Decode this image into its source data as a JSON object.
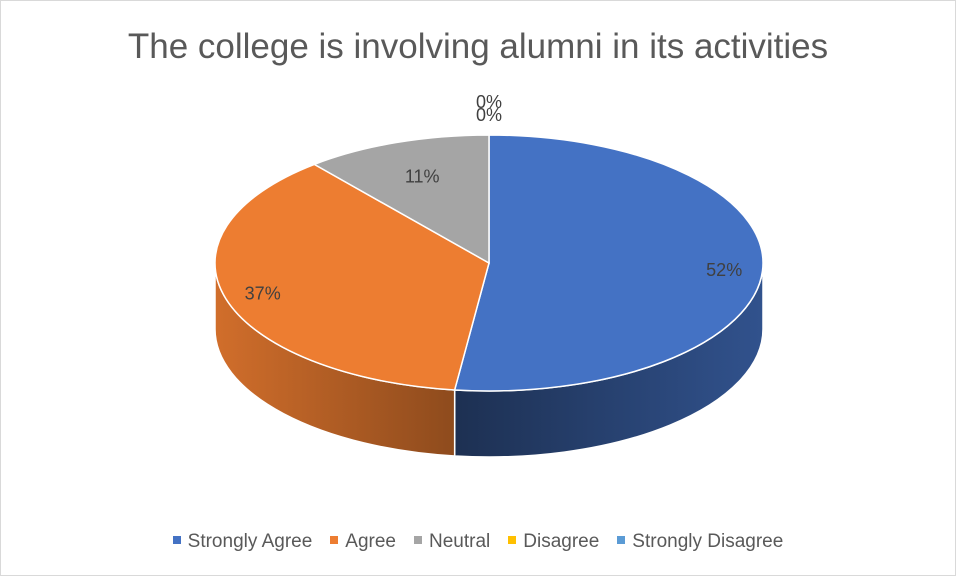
{
  "chart_data": {
    "type": "pie",
    "title": "The college is involving alumni in its activities",
    "categories": [
      "Strongly Agree",
      "Agree",
      "Neutral",
      "Disagree",
      "Strongly Disagree"
    ],
    "values": [
      52,
      37,
      11,
      0,
      0
    ],
    "labels": [
      "52%",
      "37%",
      "11%",
      "0%",
      "0%"
    ],
    "colors": [
      "#4472c4",
      "#ed7d31",
      "#a5a5a5",
      "#ffc000",
      "#5b9bd5"
    ],
    "style": "3d",
    "legend": "bottom"
  }
}
